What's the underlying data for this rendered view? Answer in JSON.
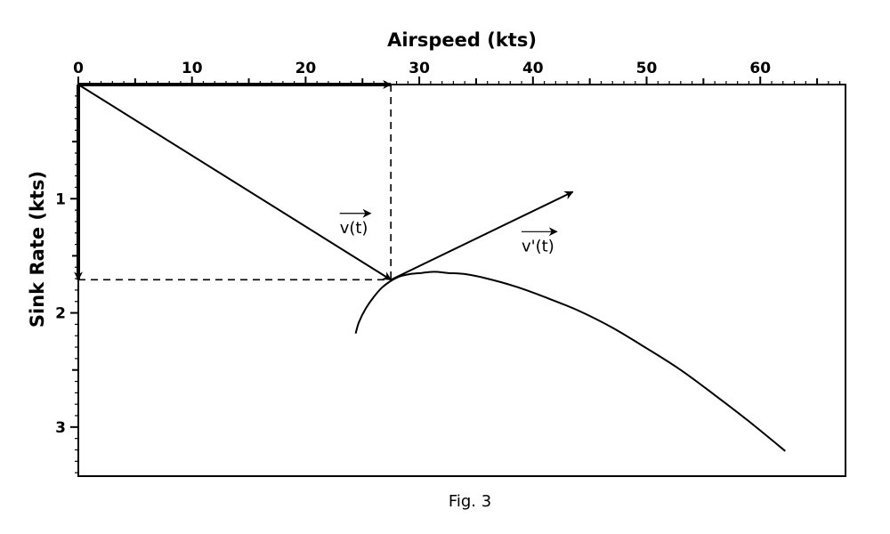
{
  "caption": "Fig. 3",
  "chart_data": {
    "type": "line",
    "xlabel": "Airspeed (kts)",
    "ylabel": "Sink Rate (kts)",
    "xlim": [
      0,
      67.5
    ],
    "ylim": [
      0,
      3.43
    ],
    "x_axis_position": "top",
    "y_inverted": true,
    "x_ticks": [
      0,
      10,
      20,
      30,
      40,
      50,
      60
    ],
    "x_tick_labels": [
      "0",
      "10",
      "20",
      "30",
      "40",
      "50",
      "60"
    ],
    "y_ticks": [
      1,
      2,
      3
    ],
    "y_tick_labels": [
      "1",
      "2",
      "3"
    ],
    "grid": false,
    "series": [
      {
        "role": "polar-curve",
        "x": [
          24.4,
          24.7,
          25.3,
          26.0,
          26.7,
          27.5,
          28.3,
          29.2,
          30.2,
          31.3,
          32.5,
          34.0,
          36.0,
          38.5,
          41.0,
          44.0,
          47.0,
          50.0,
          53.0,
          56.0,
          59.0,
          62.2
        ],
        "y": [
          2.18,
          2.08,
          1.96,
          1.86,
          1.78,
          1.72,
          1.68,
          1.66,
          1.65,
          1.64,
          1.65,
          1.66,
          1.7,
          1.77,
          1.86,
          1.98,
          2.13,
          2.31,
          2.5,
          2.72,
          2.95,
          3.21
        ]
      }
    ],
    "vectors": [
      {
        "name": "v(t)",
        "from": [
          0,
          0
        ],
        "to": [
          27.5,
          1.71
        ]
      },
      {
        "name": "v'(t)",
        "from": [
          27.5,
          1.71
        ],
        "to": [
          43.5,
          0.94
        ]
      },
      {
        "from": [
          0,
          0
        ],
        "to": [
          27.5,
          0
        ]
      },
      {
        "from": [
          0,
          0
        ],
        "to": [
          0,
          1.71
        ]
      }
    ],
    "guides": [
      {
        "from": [
          27.5,
          0
        ],
        "to": [
          27.5,
          1.71
        ]
      },
      {
        "from": [
          0,
          1.71
        ],
        "to": [
          27.5,
          1.71
        ]
      }
    ],
    "annotations": [
      {
        "text": "v(t)",
        "x": 23.0,
        "y": 1.3
      },
      {
        "text": "v'(t)",
        "x": 39.0,
        "y": 1.46
      }
    ]
  }
}
